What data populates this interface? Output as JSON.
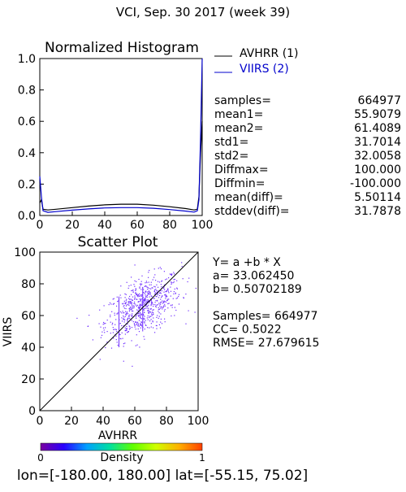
{
  "title": "VCI,  Sep. 30 2017 (week 39)",
  "colors": {
    "series1": "#000000",
    "series2": "#0000cc",
    "scatter_points": "#7030ff",
    "axis": "#000000"
  },
  "chart_data": [
    {
      "type": "line",
      "title": "Normalized Histogram",
      "xlim": [
        0,
        100
      ],
      "ylim": [
        0,
        1.0
      ],
      "x_ticks": [
        "0",
        "20",
        "40",
        "60",
        "80",
        "100"
      ],
      "y_ticks": [
        "0.0",
        "0.2",
        "0.4",
        "0.6",
        "0.8",
        "1.0"
      ],
      "legend_position": "top-right",
      "series": [
        {
          "name": "AVHRR (1)",
          "color": "#000000",
          "points": [
            [
              0,
              0.08
            ],
            [
              1,
              0.1
            ],
            [
              2,
              0.04
            ],
            [
              5,
              0.035
            ],
            [
              10,
              0.04
            ],
            [
              20,
              0.05
            ],
            [
              30,
              0.06
            ],
            [
              40,
              0.068
            ],
            [
              50,
              0.072
            ],
            [
              60,
              0.072
            ],
            [
              70,
              0.066
            ],
            [
              80,
              0.056
            ],
            [
              90,
              0.044
            ],
            [
              95,
              0.035
            ],
            [
              97,
              0.04
            ],
            [
              98,
              0.12
            ],
            [
              99,
              0.4
            ],
            [
              100,
              0.6
            ]
          ]
        },
        {
          "name": "VIIRS (2)",
          "color": "#0000cc",
          "points": [
            [
              0,
              0.25
            ],
            [
              1,
              0.12
            ],
            [
              2,
              0.03
            ],
            [
              5,
              0.02
            ],
            [
              10,
              0.025
            ],
            [
              20,
              0.034
            ],
            [
              30,
              0.042
            ],
            [
              40,
              0.048
            ],
            [
              50,
              0.05
            ],
            [
              60,
              0.05
            ],
            [
              70,
              0.046
            ],
            [
              80,
              0.038
            ],
            [
              90,
              0.028
            ],
            [
              95,
              0.022
            ],
            [
              97,
              0.03
            ],
            [
              98,
              0.1
            ],
            [
              99,
              0.5
            ],
            [
              100,
              1.0
            ]
          ]
        }
      ],
      "stats": [
        {
          "label": "samples=",
          "value": "664977"
        },
        {
          "label": "mean1=",
          "value": "55.9079"
        },
        {
          "label": "mean2=",
          "value": "61.4089"
        },
        {
          "label": "std1=",
          "value": "31.7014"
        },
        {
          "label": "std2=",
          "value": "32.0058"
        },
        {
          "label": "Diffmax=",
          "value": "100.000"
        },
        {
          "label": "Diffmin=",
          "value": "-100.000"
        },
        {
          "label": "mean(diff)=",
          "value": "5.50114"
        },
        {
          "label": "stddev(diff)=",
          "value": "31.7878"
        }
      ]
    },
    {
      "type": "scatter",
      "title": "Scatter Plot",
      "xlabel": "AVHRR",
      "ylabel": "VIIRS",
      "xlim": [
        0,
        100
      ],
      "ylim": [
        0,
        100
      ],
      "x_ticks": [
        "0",
        "20",
        "40",
        "60",
        "80",
        "100"
      ],
      "y_ticks": [
        "0",
        "20",
        "40",
        "60",
        "80",
        "100"
      ],
      "fit": {
        "a": 33.06245,
        "b": 0.50702189
      },
      "cloud": {
        "center_x": 65,
        "center_y": 66,
        "spread_x": 12,
        "spread_y": 10,
        "correlation": 0.5,
        "count": 700
      },
      "vertical_streaks": [
        {
          "x": 50,
          "y_range": [
            40,
            72
          ]
        },
        {
          "x": 65,
          "y_range": [
            50,
            78
          ]
        }
      ],
      "text_lines": [
        "Y= a +b * X",
        "a= 33.062450",
        "b= 0.50702189",
        "",
        "Samples= 664977",
        "CC=  0.5022",
        "RMSE= 27.679615"
      ]
    }
  ],
  "colorbar": {
    "label": "Density",
    "min_label": "0",
    "max_label": "1",
    "colors": [
      "#7a00a0",
      "#2a00ff",
      "#00a0ff",
      "#00e0a0",
      "#60ff00",
      "#d0ff00",
      "#ffb000",
      "#ff4000"
    ]
  },
  "footer": "lon=[-180.00, 180.00] lat=[-55.15, 75.02]"
}
